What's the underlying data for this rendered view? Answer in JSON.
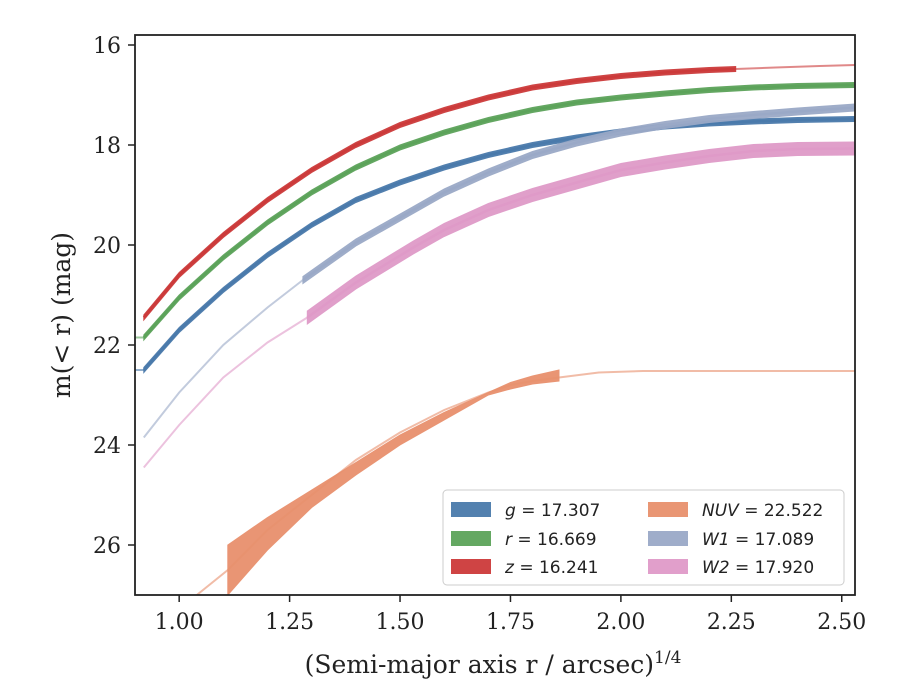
{
  "chart_data": {
    "type": "area",
    "xlabel": "(Semi-major axis r / arcsec)",
    "xlabel_sup": "1/4",
    "ylabel": "m(< r) (mag)",
    "xlim": [
      0.9,
      2.53
    ],
    "ylim": [
      27.0,
      15.8
    ],
    "y_inverted": true,
    "xticks": [
      "1.00",
      "1.25",
      "1.50",
      "1.75",
      "2.00",
      "2.25",
      "2.50"
    ],
    "yticks": [
      "16",
      "18",
      "20",
      "22",
      "24",
      "26"
    ],
    "grid": false,
    "legend_placement": "lower-right",
    "series": [
      {
        "name": "g = 17.307",
        "legend_var": "g",
        "legend_value": "17.307",
        "color": "#4a7aab",
        "x": [
          0.92,
          1.0,
          1.1,
          1.2,
          1.3,
          1.4,
          1.5,
          1.6,
          1.7,
          1.8,
          1.9,
          2.0,
          2.1,
          2.2,
          2.3,
          2.4,
          2.53
        ],
        "y": [
          22.5,
          21.7,
          20.9,
          20.2,
          19.6,
          19.1,
          18.75,
          18.45,
          18.2,
          18.0,
          17.85,
          17.73,
          17.63,
          17.57,
          17.53,
          17.5,
          17.48
        ],
        "band_x": [
          0.92,
          2.53
        ],
        "band_halfwidth": 0.05,
        "faded_x": [
          0.9,
          0.92
        ]
      },
      {
        "name": "r = 16.669",
        "legend_var": "r",
        "legend_value": "16.669",
        "color": "#5ca35a",
        "x": [
          0.92,
          1.0,
          1.1,
          1.2,
          1.3,
          1.4,
          1.5,
          1.6,
          1.7,
          1.8,
          1.9,
          2.0,
          2.1,
          2.2,
          2.3,
          2.4,
          2.53
        ],
        "y": [
          21.85,
          21.05,
          20.25,
          19.55,
          18.95,
          18.45,
          18.05,
          17.75,
          17.5,
          17.3,
          17.15,
          17.05,
          16.97,
          16.9,
          16.85,
          16.82,
          16.8
        ],
        "band_x": [
          0.92,
          2.53
        ],
        "band_halfwidth": 0.05,
        "faded_x": [
          0.9,
          0.92
        ]
      },
      {
        "name": "z = 16.241",
        "legend_var": "z",
        "legend_value": "16.241",
        "color": "#cc3a3a",
        "x": [
          0.92,
          1.0,
          1.1,
          1.2,
          1.3,
          1.4,
          1.5,
          1.6,
          1.7,
          1.8,
          1.9,
          2.0,
          2.1,
          2.2,
          2.26,
          2.35,
          2.45,
          2.53
        ],
        "y": [
          21.45,
          20.6,
          19.8,
          19.1,
          18.5,
          18.0,
          17.6,
          17.3,
          17.05,
          16.85,
          16.72,
          16.62,
          16.55,
          16.5,
          16.48,
          16.45,
          16.42,
          16.4
        ],
        "band_x": [
          0.92,
          2.26
        ],
        "band_halfwidth": 0.05,
        "faded_x": [
          2.26,
          2.53
        ]
      },
      {
        "name": "NUV = 22.522",
        "legend_var": "NUV",
        "legend_value": "22.522",
        "color": "#e8906d",
        "x": [
          1.04,
          1.11,
          1.2,
          1.3,
          1.4,
          1.5,
          1.6,
          1.7,
          1.75,
          1.8,
          1.86,
          1.95,
          2.05,
          2.2,
          2.35,
          2.53
        ],
        "y": [
          27.0,
          26.5,
          25.7,
          25.0,
          24.3,
          23.75,
          23.3,
          22.95,
          22.8,
          22.72,
          22.65,
          22.55,
          22.52,
          22.52,
          22.52,
          22.52
        ],
        "band_x": [
          1.11,
          1.86
        ],
        "band_upper": [
          [
            1.11,
            26.0
          ],
          [
            1.2,
            25.45
          ],
          [
            1.3,
            24.9
          ],
          [
            1.4,
            24.35
          ],
          [
            1.5,
            23.8
          ],
          [
            1.6,
            23.35
          ],
          [
            1.7,
            22.95
          ],
          [
            1.75,
            22.75
          ],
          [
            1.8,
            22.62
          ],
          [
            1.86,
            22.5
          ]
        ],
        "band_lower": [
          [
            1.11,
            27.0
          ],
          [
            1.2,
            26.1
          ],
          [
            1.3,
            25.25
          ],
          [
            1.4,
            24.6
          ],
          [
            1.5,
            24.0
          ],
          [
            1.6,
            23.5
          ],
          [
            1.7,
            23.0
          ],
          [
            1.75,
            22.88
          ],
          [
            1.8,
            22.78
          ],
          [
            1.86,
            22.72
          ]
        ],
        "faded_x": [
          1.04,
          2.53
        ]
      },
      {
        "name": "W1 = 17.089",
        "legend_var": "W1",
        "legend_value": "17.089",
        "color": "#9aa9c7",
        "x": [
          0.92,
          1.0,
          1.1,
          1.2,
          1.28,
          1.4,
          1.53,
          1.6,
          1.7,
          1.8,
          1.9,
          2.0,
          2.1,
          2.2,
          2.3,
          2.4,
          2.53
        ],
        "y": [
          23.85,
          22.95,
          22.0,
          21.25,
          20.7,
          19.95,
          19.3,
          18.95,
          18.55,
          18.2,
          17.95,
          17.75,
          17.6,
          17.48,
          17.4,
          17.33,
          17.25
        ],
        "band_x": [
          1.28,
          2.53
        ],
        "band_halfwidth": 0.07,
        "faded_x": [
          0.92,
          1.28
        ]
      },
      {
        "name": "W2 = 17.920",
        "legend_var": "W2",
        "legend_value": "17.920",
        "color": "#df9ac8",
        "x": [
          0.92,
          1.0,
          1.1,
          1.2,
          1.29,
          1.4,
          1.53,
          1.6,
          1.7,
          1.8,
          1.9,
          2.0,
          2.1,
          2.2,
          2.3,
          2.4,
          2.53
        ],
        "y": [
          24.45,
          23.6,
          22.65,
          21.95,
          21.45,
          20.75,
          20.05,
          19.7,
          19.3,
          19.0,
          18.75,
          18.5,
          18.35,
          18.22,
          18.12,
          18.08,
          18.07
        ],
        "band_x": [
          1.29,
          2.53
        ],
        "band_halfwidth": 0.13,
        "faded_x": [
          0.92,
          1.29
        ]
      }
    ]
  }
}
